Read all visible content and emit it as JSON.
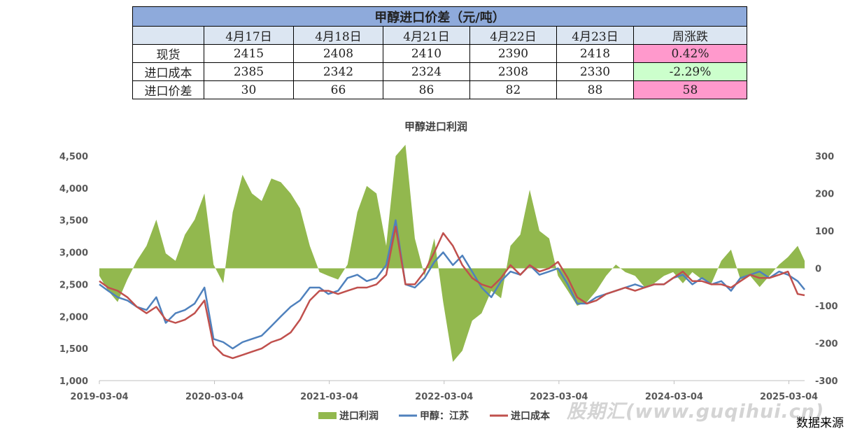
{
  "table": {
    "title": "甲醇进口价差（元/吨）",
    "headers": [
      "",
      "4月17日",
      "4月18日",
      "4月21日",
      "4月22日",
      "4月23日",
      "周涨跌"
    ],
    "rows": [
      {
        "label": "现货",
        "values": [
          "2415",
          "2408",
          "2410",
          "2390",
          "2418"
        ],
        "change": "0.42%",
        "change_sign": "pos"
      },
      {
        "label": "进口成本",
        "values": [
          "2385",
          "2342",
          "2324",
          "2308",
          "2330"
        ],
        "change": "-2.29%",
        "change_sign": "neg"
      },
      {
        "label": "进口价差",
        "values": [
          "30",
          "66",
          "86",
          "82",
          "88"
        ],
        "change": "58",
        "change_sign": "pos"
      }
    ],
    "colors": {
      "title_bg": "#8eaadb",
      "header_bg": "#dce6f2",
      "pos_bg": "#ff99cc",
      "neg_bg": "#ccffcc"
    }
  },
  "chart_data": {
    "type": "line",
    "title": "甲醇进口利润",
    "x_ticks": [
      "2019-03-04",
      "2020-03-04",
      "2021-03-04",
      "2022-03-04",
      "2023-03-04",
      "2024-03-04",
      "2025-03-04"
    ],
    "x_range": [
      "2019-03-04",
      "2025-04-23"
    ],
    "y_left": {
      "min": 1000,
      "max": 4500,
      "ticks": [
        "1,000",
        "1,500",
        "2,000",
        "2,500",
        "3,000",
        "3,500",
        "4,000",
        "4,500"
      ]
    },
    "y_right": {
      "min": -300,
      "max": 300,
      "ticks": [
        "-300",
        "-200",
        "-100",
        "0",
        "100",
        "200",
        "300"
      ]
    },
    "series": [
      {
        "name": "进口利润",
        "type": "area",
        "axis": "right",
        "color": "#92b84e",
        "x": [
          "2019-03-04",
          "2019-04-01",
          "2019-05-01",
          "2019-06-01",
          "2019-07-01",
          "2019-08-01",
          "2019-09-01",
          "2019-10-01",
          "2019-11-01",
          "2019-12-01",
          "2020-01-01",
          "2020-02-01",
          "2020-03-01",
          "2020-04-01",
          "2020-05-01",
          "2020-06-01",
          "2020-07-01",
          "2020-08-01",
          "2020-09-01",
          "2020-10-01",
          "2020-11-01",
          "2020-12-01",
          "2021-01-01",
          "2021-02-01",
          "2021-03-01",
          "2021-04-01",
          "2021-05-01",
          "2021-06-01",
          "2021-07-01",
          "2021-08-01",
          "2021-09-01",
          "2021-10-01",
          "2021-11-01",
          "2021-12-01",
          "2022-01-01",
          "2022-02-01",
          "2022-03-01",
          "2022-04-01",
          "2022-05-01",
          "2022-06-01",
          "2022-07-01",
          "2022-08-01",
          "2022-09-01",
          "2022-10-01",
          "2022-11-01",
          "2022-12-01",
          "2023-01-01",
          "2023-02-01",
          "2023-03-01",
          "2023-04-01",
          "2023-05-01",
          "2023-06-01",
          "2023-07-01",
          "2023-08-01",
          "2023-09-01",
          "2023-10-01",
          "2023-11-01",
          "2023-12-01",
          "2024-01-01",
          "2024-02-01",
          "2024-03-01",
          "2024-04-01",
          "2024-05-01",
          "2024-06-01",
          "2024-07-01",
          "2024-08-01",
          "2024-09-01",
          "2024-10-01",
          "2024-11-01",
          "2024-12-01",
          "2025-01-01",
          "2025-02-01",
          "2025-03-01",
          "2025-04-01",
          "2025-04-23"
        ],
        "values": [
          -20,
          -60,
          -90,
          -30,
          20,
          60,
          130,
          40,
          20,
          90,
          130,
          200,
          10,
          -40,
          150,
          250,
          200,
          180,
          240,
          230,
          200,
          160,
          60,
          -10,
          -20,
          -30,
          10,
          150,
          220,
          200,
          60,
          300,
          330,
          80,
          -20,
          80,
          -90,
          -250,
          -220,
          -140,
          -120,
          -60,
          -80,
          60,
          90,
          210,
          100,
          80,
          -20,
          -60,
          -100,
          -90,
          -60,
          -20,
          10,
          -10,
          -20,
          -50,
          -40,
          -20,
          -10,
          -40,
          -10,
          -30,
          -40,
          20,
          50,
          -30,
          -20,
          -50,
          -20,
          10,
          30,
          60,
          20
        ]
      },
      {
        "name": "甲醇：江苏",
        "type": "line",
        "axis": "left",
        "color": "#4f81bd",
        "x": [
          "2019-03-04",
          "2019-04-01",
          "2019-05-01",
          "2019-06-01",
          "2019-07-01",
          "2019-08-01",
          "2019-09-01",
          "2019-10-01",
          "2019-11-01",
          "2019-12-01",
          "2020-01-01",
          "2020-02-01",
          "2020-03-01",
          "2020-04-01",
          "2020-05-01",
          "2020-06-01",
          "2020-07-01",
          "2020-08-01",
          "2020-09-01",
          "2020-10-01",
          "2020-11-01",
          "2020-12-01",
          "2021-01-01",
          "2021-02-01",
          "2021-03-01",
          "2021-04-01",
          "2021-05-01",
          "2021-06-01",
          "2021-07-01",
          "2021-08-01",
          "2021-09-01",
          "2021-10-01",
          "2021-11-01",
          "2021-12-01",
          "2022-01-01",
          "2022-02-01",
          "2022-03-01",
          "2022-04-01",
          "2022-05-01",
          "2022-06-01",
          "2022-07-01",
          "2022-08-01",
          "2022-09-01",
          "2022-10-01",
          "2022-11-01",
          "2022-12-01",
          "2023-01-01",
          "2023-02-01",
          "2023-03-01",
          "2023-04-01",
          "2023-05-01",
          "2023-06-01",
          "2023-07-01",
          "2023-08-01",
          "2023-09-01",
          "2023-10-01",
          "2023-11-01",
          "2023-12-01",
          "2024-01-01",
          "2024-02-01",
          "2024-03-01",
          "2024-04-01",
          "2024-05-01",
          "2024-06-01",
          "2024-07-01",
          "2024-08-01",
          "2024-09-01",
          "2024-10-01",
          "2024-11-01",
          "2024-12-01",
          "2025-01-01",
          "2025-02-01",
          "2025-03-01",
          "2025-04-01",
          "2025-04-23"
        ],
        "values": [
          2500,
          2400,
          2300,
          2250,
          2150,
          2100,
          2300,
          1900,
          2050,
          2100,
          2200,
          2450,
          1650,
          1600,
          1500,
          1600,
          1650,
          1700,
          1850,
          2000,
          2150,
          2250,
          2450,
          2450,
          2350,
          2400,
          2600,
          2650,
          2550,
          2600,
          2800,
          3500,
          2500,
          2450,
          2600,
          2850,
          3000,
          2800,
          2950,
          2700,
          2450,
          2300,
          2550,
          2700,
          2650,
          2800,
          2650,
          2700,
          2750,
          2500,
          2200,
          2200,
          2300,
          2350,
          2400,
          2450,
          2500,
          2450,
          2500,
          2500,
          2600,
          2650,
          2500,
          2600,
          2500,
          2550,
          2400,
          2600,
          2650,
          2700,
          2600,
          2700,
          2650,
          2550,
          2418
        ]
      },
      {
        "name": "进口成本",
        "type": "line",
        "axis": "left",
        "color": "#c0504d",
        "x": [
          "2019-03-04",
          "2019-04-01",
          "2019-05-01",
          "2019-06-01",
          "2019-07-01",
          "2019-08-01",
          "2019-09-01",
          "2019-10-01",
          "2019-11-01",
          "2019-12-01",
          "2020-01-01",
          "2020-02-01",
          "2020-03-01",
          "2020-04-01",
          "2020-05-01",
          "2020-06-01",
          "2020-07-01",
          "2020-08-01",
          "2020-09-01",
          "2020-10-01",
          "2020-11-01",
          "2020-12-01",
          "2021-01-01",
          "2021-02-01",
          "2021-03-01",
          "2021-04-01",
          "2021-05-01",
          "2021-06-01",
          "2021-07-01",
          "2021-08-01",
          "2021-09-01",
          "2021-10-01",
          "2021-11-01",
          "2021-12-01",
          "2022-01-01",
          "2022-02-01",
          "2022-03-01",
          "2022-04-01",
          "2022-05-01",
          "2022-06-01",
          "2022-07-01",
          "2022-08-01",
          "2022-09-01",
          "2022-10-01",
          "2022-11-01",
          "2022-12-01",
          "2023-01-01",
          "2023-02-01",
          "2023-03-01",
          "2023-04-01",
          "2023-05-01",
          "2023-06-01",
          "2023-07-01",
          "2023-08-01",
          "2023-09-01",
          "2023-10-01",
          "2023-11-01",
          "2023-12-01",
          "2024-01-01",
          "2024-02-01",
          "2024-03-01",
          "2024-04-01",
          "2024-05-01",
          "2024-06-01",
          "2024-07-01",
          "2024-08-01",
          "2024-09-01",
          "2024-10-01",
          "2024-11-01",
          "2024-12-01",
          "2025-01-01",
          "2025-02-01",
          "2025-03-01",
          "2025-04-01",
          "2025-04-23"
        ],
        "values": [
          2550,
          2450,
          2400,
          2300,
          2150,
          2050,
          2150,
          1950,
          1900,
          1950,
          2050,
          2250,
          1550,
          1400,
          1350,
          1400,
          1450,
          1500,
          1600,
          1650,
          1750,
          1950,
          2250,
          2400,
          2400,
          2350,
          2400,
          2450,
          2450,
          2500,
          2650,
          3400,
          2500,
          2500,
          2700,
          3000,
          3300,
          3100,
          2800,
          2600,
          2500,
          2450,
          2600,
          2800,
          2650,
          2800,
          2700,
          2750,
          2850,
          2600,
          2300,
          2200,
          2250,
          2350,
          2400,
          2450,
          2400,
          2450,
          2500,
          2500,
          2600,
          2700,
          2550,
          2550,
          2500,
          2500,
          2450,
          2550,
          2650,
          2600,
          2600,
          2650,
          2700,
          2350,
          2330
        ]
      }
    ],
    "legend_position": "bottom"
  },
  "watermark": "股期汇(www.guqihui.cn)",
  "source_note": "数据来源"
}
